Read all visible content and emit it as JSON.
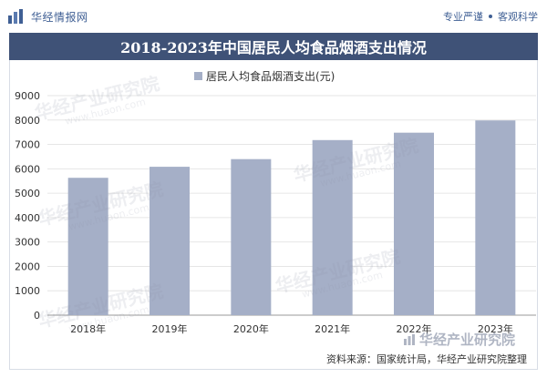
{
  "header": {
    "brand": "华经情报网",
    "tag_left": "专业严谨",
    "tag_right": "客观科学"
  },
  "title": "2018-2023年中国居民人均食品烟酒支出情况",
  "source": "资料来源：国家统计局，华经产业研究院整理",
  "watermark": {
    "text": "华经产业研究院",
    "url": "www.huaon.com"
  },
  "colors": {
    "bar": "#a5afc7",
    "header_blue": "#3f5277",
    "brand_blue": "#3f5f94",
    "grid": "#e6e6e6"
  },
  "chart_data": {
    "type": "bar",
    "title": "2018-2023年中国居民人均食品烟酒支出情况",
    "categories": [
      "2018年",
      "2019年",
      "2020年",
      "2021年",
      "2022年",
      "2023年"
    ],
    "series": [
      {
        "name": "居民人均食品烟酒支出(元)",
        "values": [
          5631,
          6084,
          6397,
          7178,
          7481,
          7983
        ]
      }
    ],
    "ylim": [
      0,
      9000
    ],
    "yticks": [
      0,
      1000,
      2000,
      3000,
      4000,
      5000,
      6000,
      7000,
      8000,
      9000
    ],
    "legend": "top-center",
    "grid": true
  }
}
